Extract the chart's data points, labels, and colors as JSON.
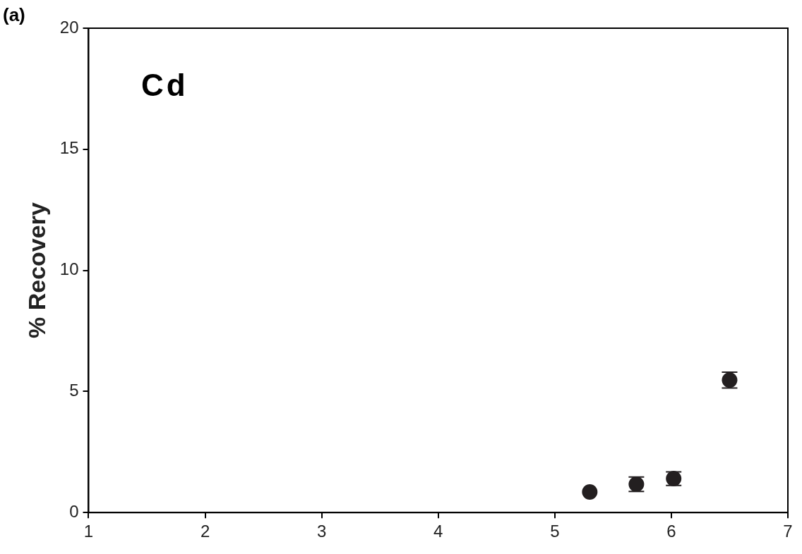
{
  "chart_data": {
    "type": "scatter",
    "ylabel": "% Recovery",
    "annotations": [
      "(a)",
      "Cd"
    ],
    "x": [
      5.3,
      5.7,
      6.02,
      6.5
    ],
    "series": [
      {
        "color": "#231f20",
        "values": [
          0.85,
          1.17,
          1.4,
          5.47
        ],
        "errors": [
          null,
          0.3,
          0.28,
          0.33
        ]
      }
    ],
    "xlim": [
      1,
      7
    ],
    "xticks": [
      1,
      2,
      3,
      4,
      5,
      6,
      7
    ],
    "ylim": [
      0,
      20
    ],
    "yticks": [
      0,
      5,
      10,
      15,
      20
    ],
    "grid": false,
    "legend": false,
    "marker": "circle"
  }
}
